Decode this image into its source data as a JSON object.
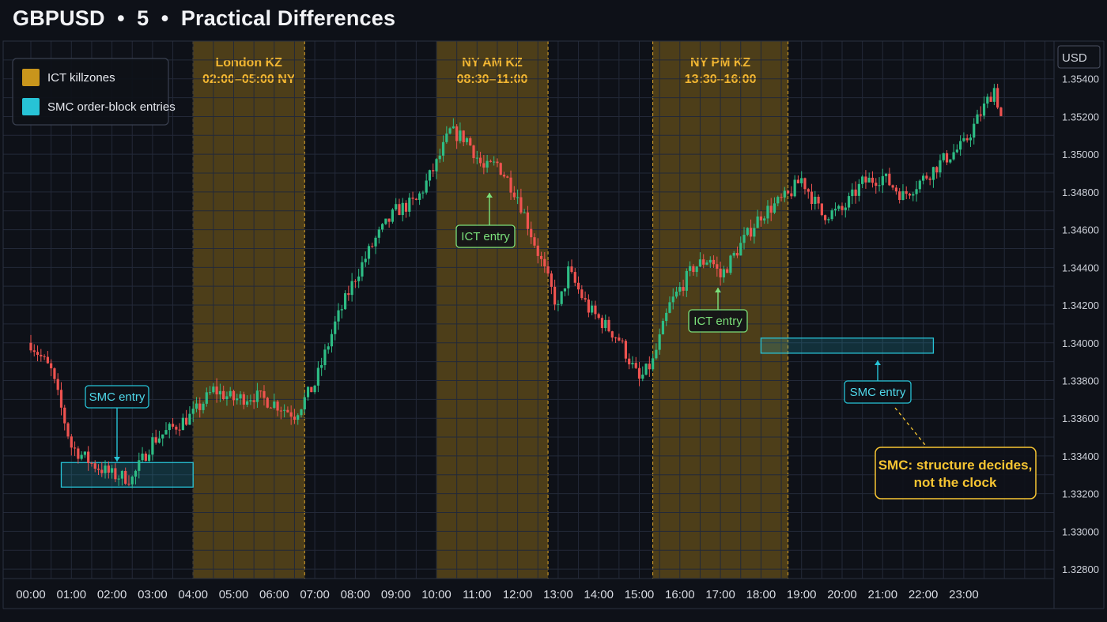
{
  "title": "GBPUSD  •  5  •  Practical Differences",
  "chart_data": {
    "type": "candlestick",
    "symbol": "GBPUSD",
    "timeframe": "5",
    "y_unit": "USD",
    "ylim": [
      1.3275,
      1.356
    ],
    "y_ticks": [
      "1.35400",
      "1.35200",
      "1.35000",
      "1.34800",
      "1.34600",
      "1.34400",
      "1.34200",
      "1.34000",
      "1.33800",
      "1.33600",
      "1.33400",
      "1.33200",
      "1.33000",
      "1.32800"
    ],
    "x_ticks": [
      "00:00",
      "01:00",
      "02:00",
      "03:00",
      "04:00",
      "05:00",
      "06:00",
      "07:00",
      "08:00",
      "09:00",
      "10:00",
      "11:00",
      "12:00",
      "13:00",
      "14:00",
      "15:00",
      "16:00",
      "17:00",
      "18:00",
      "19:00",
      "20:00",
      "21:00",
      "22:00",
      "23:00"
    ],
    "price_path": [
      [
        "00:00",
        1.34
      ],
      [
        "00:30",
        1.3385
      ],
      [
        "01:00",
        1.3345
      ],
      [
        "01:30",
        1.3336
      ],
      [
        "02:00",
        1.333
      ],
      [
        "02:30",
        1.3328
      ],
      [
        "03:00",
        1.3348
      ],
      [
        "03:30",
        1.3355
      ],
      [
        "04:00",
        1.3362
      ],
      [
        "04:30",
        1.3375
      ],
      [
        "05:00",
        1.337
      ],
      [
        "05:30",
        1.3372
      ],
      [
        "06:00",
        1.3368
      ],
      [
        "06:30",
        1.3362
      ],
      [
        "07:00",
        1.3378
      ],
      [
        "07:30",
        1.341
      ],
      [
        "08:00",
        1.3435
      ],
      [
        "08:30",
        1.3455
      ],
      [
        "09:00",
        1.347
      ],
      [
        "09:30",
        1.3475
      ],
      [
        "10:00",
        1.3495
      ],
      [
        "10:20",
        1.3512
      ],
      [
        "10:45",
        1.3508
      ],
      [
        "11:10",
        1.3492
      ],
      [
        "11:30",
        1.3495
      ],
      [
        "12:00",
        1.3478
      ],
      [
        "12:30",
        1.3448
      ],
      [
        "13:00",
        1.3418
      ],
      [
        "13:15",
        1.3438
      ],
      [
        "13:45",
        1.3418
      ],
      [
        "14:30",
        1.3402
      ],
      [
        "15:00",
        1.338
      ],
      [
        "15:20",
        1.339
      ],
      [
        "15:45",
        1.342
      ],
      [
        "16:20",
        1.344
      ],
      [
        "16:45",
        1.3445
      ],
      [
        "17:00",
        1.3435
      ],
      [
        "17:30",
        1.3452
      ],
      [
        "18:00",
        1.3468
      ],
      [
        "18:40",
        1.3478
      ],
      [
        "19:00",
        1.3487
      ],
      [
        "19:30",
        1.3468
      ],
      [
        "20:00",
        1.347
      ],
      [
        "20:30",
        1.3485
      ],
      [
        "21:00",
        1.3488
      ],
      [
        "21:30",
        1.3478
      ],
      [
        "22:00",
        1.3487
      ],
      [
        "22:30",
        1.3497
      ],
      [
        "23:00",
        1.3505
      ],
      [
        "23:30",
        1.3525
      ],
      [
        "23:45",
        1.3535
      ],
      [
        "23:55",
        1.352
      ]
    ],
    "killzones": [
      {
        "label": "London KZ",
        "sub": "02:00–05:00 NY",
        "start": "04:00",
        "end": "06:45"
      },
      {
        "label": "NY AM KZ",
        "sub": "08:30–11:00",
        "start": "10:00",
        "end": "12:45"
      },
      {
        "label": "NY PM KZ",
        "sub": "13:30–16:00",
        "start": "15:20",
        "end": "18:40"
      }
    ],
    "order_blocks": [
      {
        "start": "00:45",
        "end": "04:00",
        "top": 1.33365,
        "bottom": 1.33235
      },
      {
        "start": "18:00",
        "end": "22:15",
        "top": 1.34025,
        "bottom": 1.33945
      }
    ],
    "legend": [
      {
        "label": "ICT killzones",
        "color": "#c8951c"
      },
      {
        "label": "SMC order-block entries",
        "color": "#27c3d6"
      }
    ],
    "annotations": {
      "smc_entry_1": "SMC entry",
      "ict_entry_1": "ICT entry",
      "ict_entry_2": "ICT entry",
      "smc_entry_2": "SMC entry",
      "note_line1": "SMC: structure decides,",
      "note_line2": "not the clock"
    },
    "colors": {
      "up": "#2ebd85",
      "down": "#ef5350",
      "killzone": "#c8951c",
      "orderblock": "#27c3d6",
      "ict": "#7be07a",
      "note": "#f7c532"
    }
  }
}
